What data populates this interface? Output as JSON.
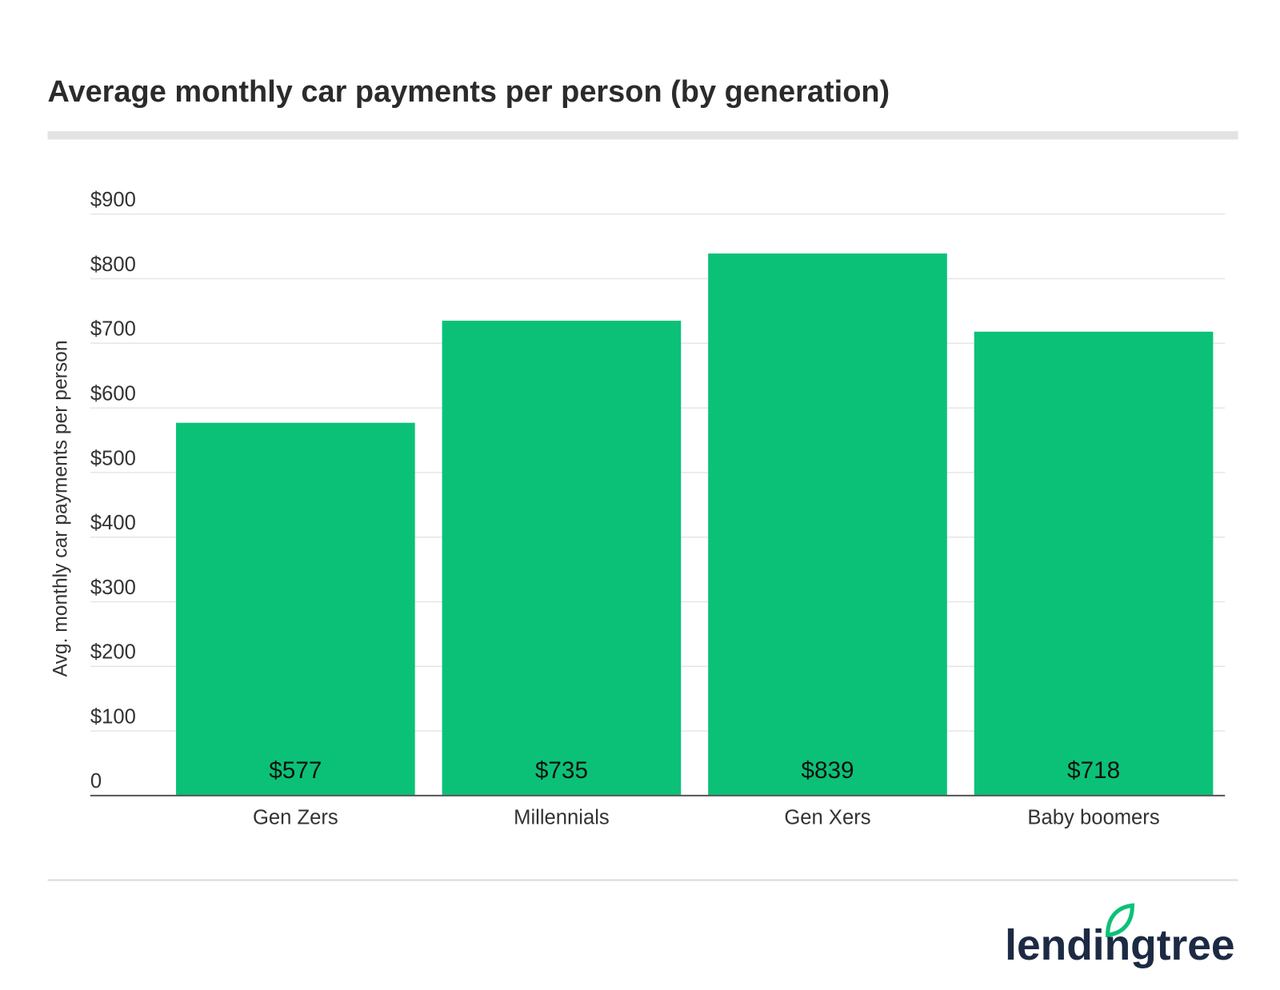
{
  "chart_data": {
    "type": "bar",
    "title": "Average monthly car payments per person (by generation)",
    "y_label": "Avg. monthly car payments per person",
    "categories": [
      "Gen Zers",
      "Millennials",
      "Gen Xers",
      "Baby boomers"
    ],
    "values": [
      577,
      735,
      839,
      718
    ],
    "value_labels": [
      "$577",
      "$735",
      "$839",
      "$718"
    ],
    "color": "#0bc177",
    "ylim": [
      0,
      900
    ],
    "yticks": [
      0,
      {
        "value": 100,
        "label": "$100"
      },
      {
        "value": 200,
        "label": "$200"
      },
      {
        "value": 300,
        "label": "$300"
      },
      {
        "value": 400,
        "label": "$400"
      },
      {
        "value": 500,
        "label": "$500"
      },
      {
        "value": 600,
        "label": "$600"
      },
      {
        "value": 700,
        "label": "$700"
      },
      {
        "value": 800,
        "label": "$800"
      },
      {
        "value": 900,
        "label": "$900"
      }
    ],
    "grid": true
  },
  "logo": "lendingtree"
}
